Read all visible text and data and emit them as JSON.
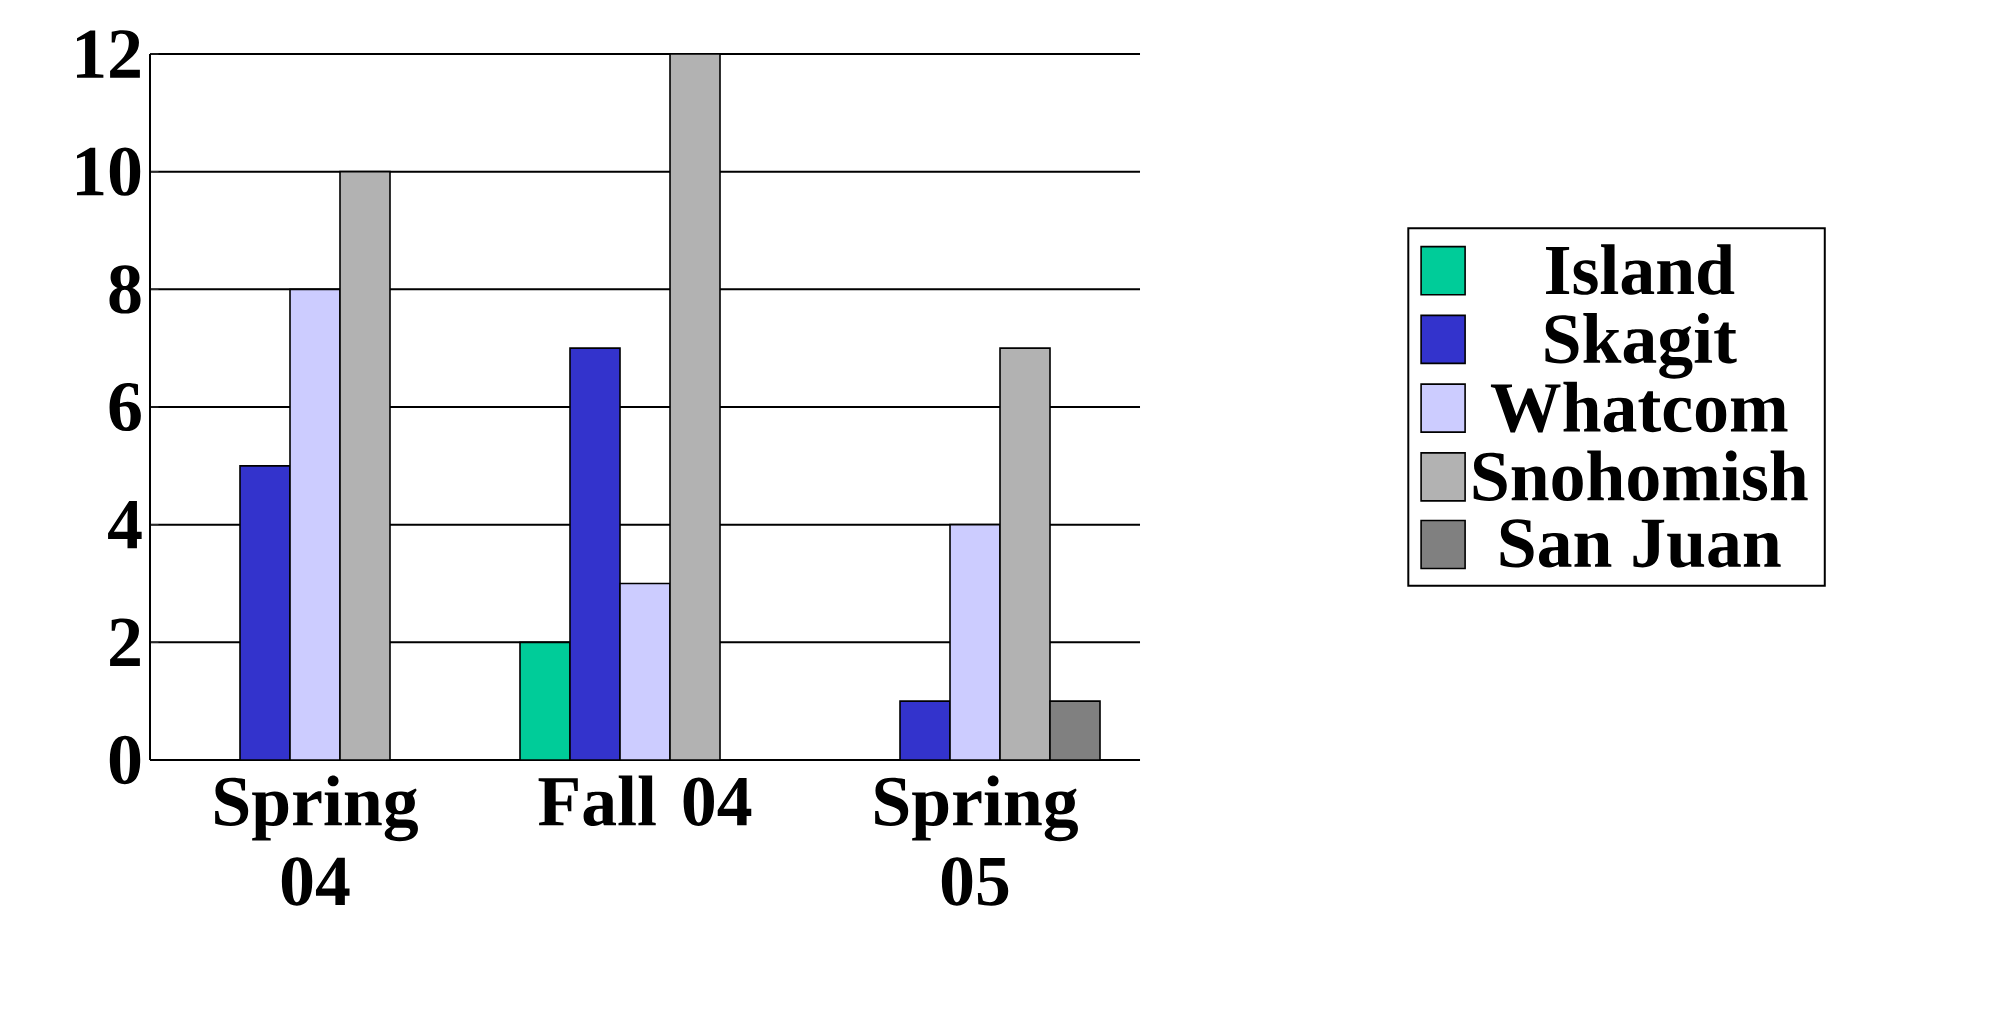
{
  "chart_data": {
    "type": "bar",
    "categories": [
      "Spring 04",
      "Fall 04",
      "Spring 05"
    ],
    "series": [
      {
        "name": "Island",
        "color": "#00cc99",
        "values": [
          0,
          2,
          0
        ]
      },
      {
        "name": "Skagit",
        "color": "#3333cc",
        "values": [
          5,
          7,
          1
        ]
      },
      {
        "name": "Whatcom",
        "color": "#ccccff",
        "values": [
          8,
          3,
          4
        ]
      },
      {
        "name": "Snohomish",
        "color": "#b2b2b2",
        "values": [
          10,
          12,
          7
        ]
      },
      {
        "name": "San Juan",
        "color": "#808080",
        "values": [
          0,
          0,
          1
        ]
      }
    ],
    "ylim": [
      0,
      12
    ],
    "yticks": [
      0,
      2,
      4,
      6,
      8,
      10,
      12
    ],
    "grid": "y",
    "legend": "right"
  }
}
